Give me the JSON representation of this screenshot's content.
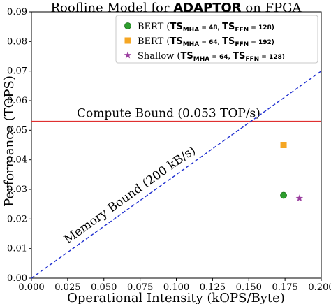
{
  "chart_data": {
    "type": "scatter",
    "title_parts": [
      "Roofline Model for ",
      "ADAPTOR",
      " on FPGA"
    ],
    "xlabel": "Operational Intensity (kOPS/Byte)",
    "ylabel": "Performance (TOPS)",
    "xlim": [
      0.0,
      0.2
    ],
    "ylim": [
      0.0,
      0.09
    ],
    "xticks": [
      0.0,
      0.025,
      0.05,
      0.075,
      0.1,
      0.125,
      0.15,
      0.175,
      0.2
    ],
    "xtick_labels": [
      "0.000",
      "0.025",
      "0.050",
      "0.075",
      "0.100",
      "0.125",
      "0.150",
      "0.175",
      "0.200"
    ],
    "yticks": [
      0.0,
      0.01,
      0.02,
      0.03,
      0.04,
      0.05,
      0.06,
      0.07,
      0.08,
      0.09
    ],
    "ytick_labels": [
      "0.00",
      "0.01",
      "0.02",
      "0.03",
      "0.04",
      "0.05",
      "0.06",
      "0.07",
      "0.08",
      "0.09"
    ],
    "grid": false,
    "legend_position": "top-right",
    "compute_bound": {
      "value": 0.053,
      "label": "Compute Bound (0.053 TOP/s)",
      "color": "#e03030"
    },
    "memory_bound": {
      "slope": 0.35,
      "label": "Memory Bound (200 kB/s)",
      "color": "#1f2fd0"
    },
    "series": [
      {
        "name": "BERT",
        "ts_mha": "48",
        "ts_ffn": "128",
        "marker": "circle",
        "color": "#2e9e2e",
        "points": [
          {
            "x": 0.174,
            "y": 0.028
          }
        ]
      },
      {
        "name": "BERT",
        "ts_mha": "64",
        "ts_ffn": "192",
        "marker": "square",
        "color": "#f5a623",
        "points": [
          {
            "x": 0.174,
            "y": 0.045
          }
        ]
      },
      {
        "name": "Shallow",
        "ts_mha": "64",
        "ts_ffn": "128",
        "marker": "star",
        "color": "#9b3fa0",
        "points": [
          {
            "x": 0.185,
            "y": 0.027
          }
        ]
      }
    ]
  }
}
